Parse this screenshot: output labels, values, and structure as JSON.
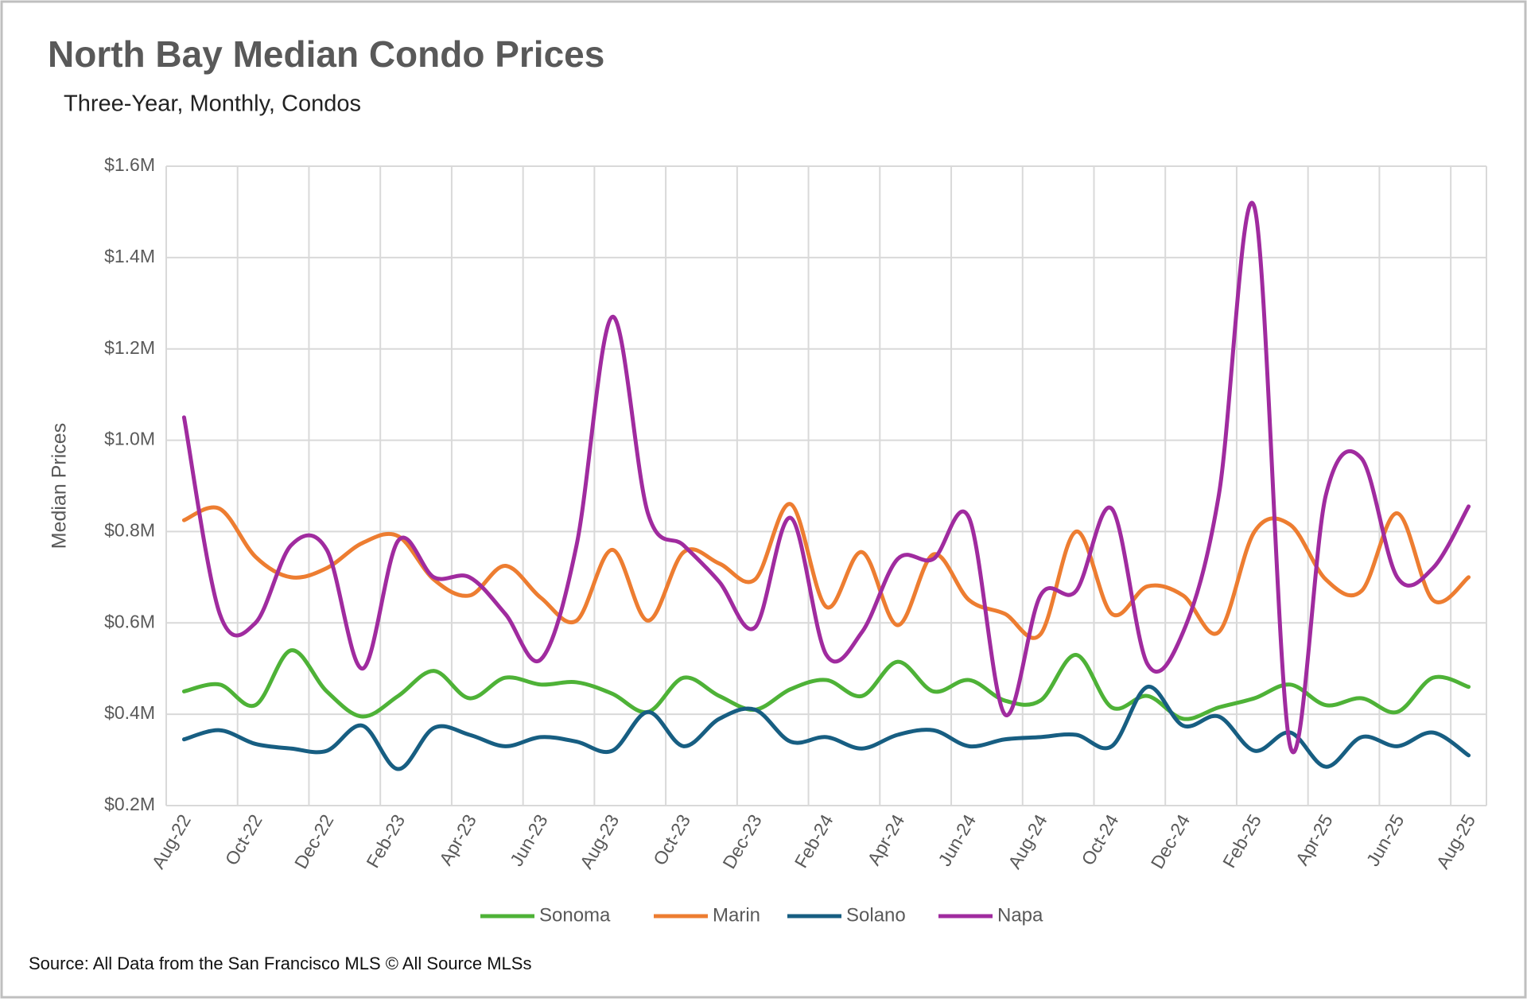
{
  "chart_data": {
    "type": "line",
    "title": "North Bay Median Condo Prices",
    "subtitle": "Three-Year, Monthly, Condos",
    "y_axis_label": "Median Prices",
    "source": "Source: All Data from the San Francisco MLS © All Source MLSs",
    "categories": [
      "Aug-22",
      null,
      "Oct-22",
      null,
      "Dec-22",
      null,
      "Feb-23",
      null,
      "Apr-23",
      null,
      "Jun-23",
      null,
      "Aug-23",
      null,
      "Oct-23",
      null,
      "Dec-23",
      null,
      "Feb-24",
      null,
      "Apr-24",
      null,
      "Jun-24",
      null,
      "Aug-24",
      null,
      "Oct-24",
      null,
      "Dec-24",
      null,
      "Feb-25",
      null,
      "Apr-25",
      null,
      "Jun-25",
      null,
      "Aug-25"
    ],
    "ylim": [
      200000,
      1600000
    ],
    "yticks": [
      {
        "value": 200000,
        "label": "$0.2M"
      },
      {
        "value": 400000,
        "label": "$0.4M"
      },
      {
        "value": 600000,
        "label": "$0.6M"
      },
      {
        "value": 800000,
        "label": "$0.8M"
      },
      {
        "value": 1000000,
        "label": "$1.0M"
      },
      {
        "value": 1200000,
        "label": "$1.2M"
      },
      {
        "value": 1400000,
        "label": "$1.4M"
      },
      {
        "value": 1600000,
        "label": "$1.6M"
      }
    ],
    "grid": true,
    "smooth": true,
    "legend": "bottom",
    "series": [
      {
        "name": "Sonoma",
        "color": "#4eb237",
        "values": [
          450000,
          465000,
          420000,
          540000,
          450000,
          395000,
          440000,
          495000,
          435000,
          480000,
          465000,
          470000,
          445000,
          405000,
          480000,
          440000,
          410000,
          455000,
          475000,
          440000,
          515000,
          450000,
          475000,
          430000,
          430000,
          530000,
          415000,
          440000,
          390000,
          415000,
          435000,
          465000,
          420000,
          435000,
          405000,
          480000,
          460000
        ]
      },
      {
        "name": "Marin",
        "color": "#ed7d31",
        "values": [
          825000,
          850000,
          745000,
          700000,
          720000,
          775000,
          790000,
          695000,
          660000,
          725000,
          655000,
          605000,
          760000,
          605000,
          755000,
          730000,
          695000,
          860000,
          635000,
          755000,
          595000,
          750000,
          650000,
          620000,
          575000,
          800000,
          620000,
          680000,
          660000,
          580000,
          800000,
          815000,
          695000,
          670000,
          840000,
          650000,
          700000
        ]
      },
      {
        "name": "Solano",
        "color": "#175e82",
        "values": [
          345000,
          365000,
          335000,
          325000,
          320000,
          375000,
          280000,
          370000,
          355000,
          330000,
          350000,
          340000,
          320000,
          405000,
          330000,
          390000,
          410000,
          340000,
          350000,
          325000,
          355000,
          365000,
          330000,
          345000,
          350000,
          355000,
          330000,
          460000,
          375000,
          395000,
          320000,
          360000,
          285000,
          350000,
          330000,
          360000,
          310000
        ]
      },
      {
        "name": "Napa",
        "color": "#a02b9f",
        "values": [
          1050000,
          620000,
          600000,
          770000,
          760000,
          500000,
          780000,
          700000,
          700000,
          620000,
          520000,
          770000,
          1270000,
          840000,
          770000,
          690000,
          590000,
          830000,
          530000,
          580000,
          740000,
          740000,
          830000,
          400000,
          660000,
          670000,
          850000,
          510000,
          580000,
          880000,
          1510000,
          330000,
          880000,
          960000,
          700000,
          720000,
          855000
        ]
      }
    ]
  }
}
